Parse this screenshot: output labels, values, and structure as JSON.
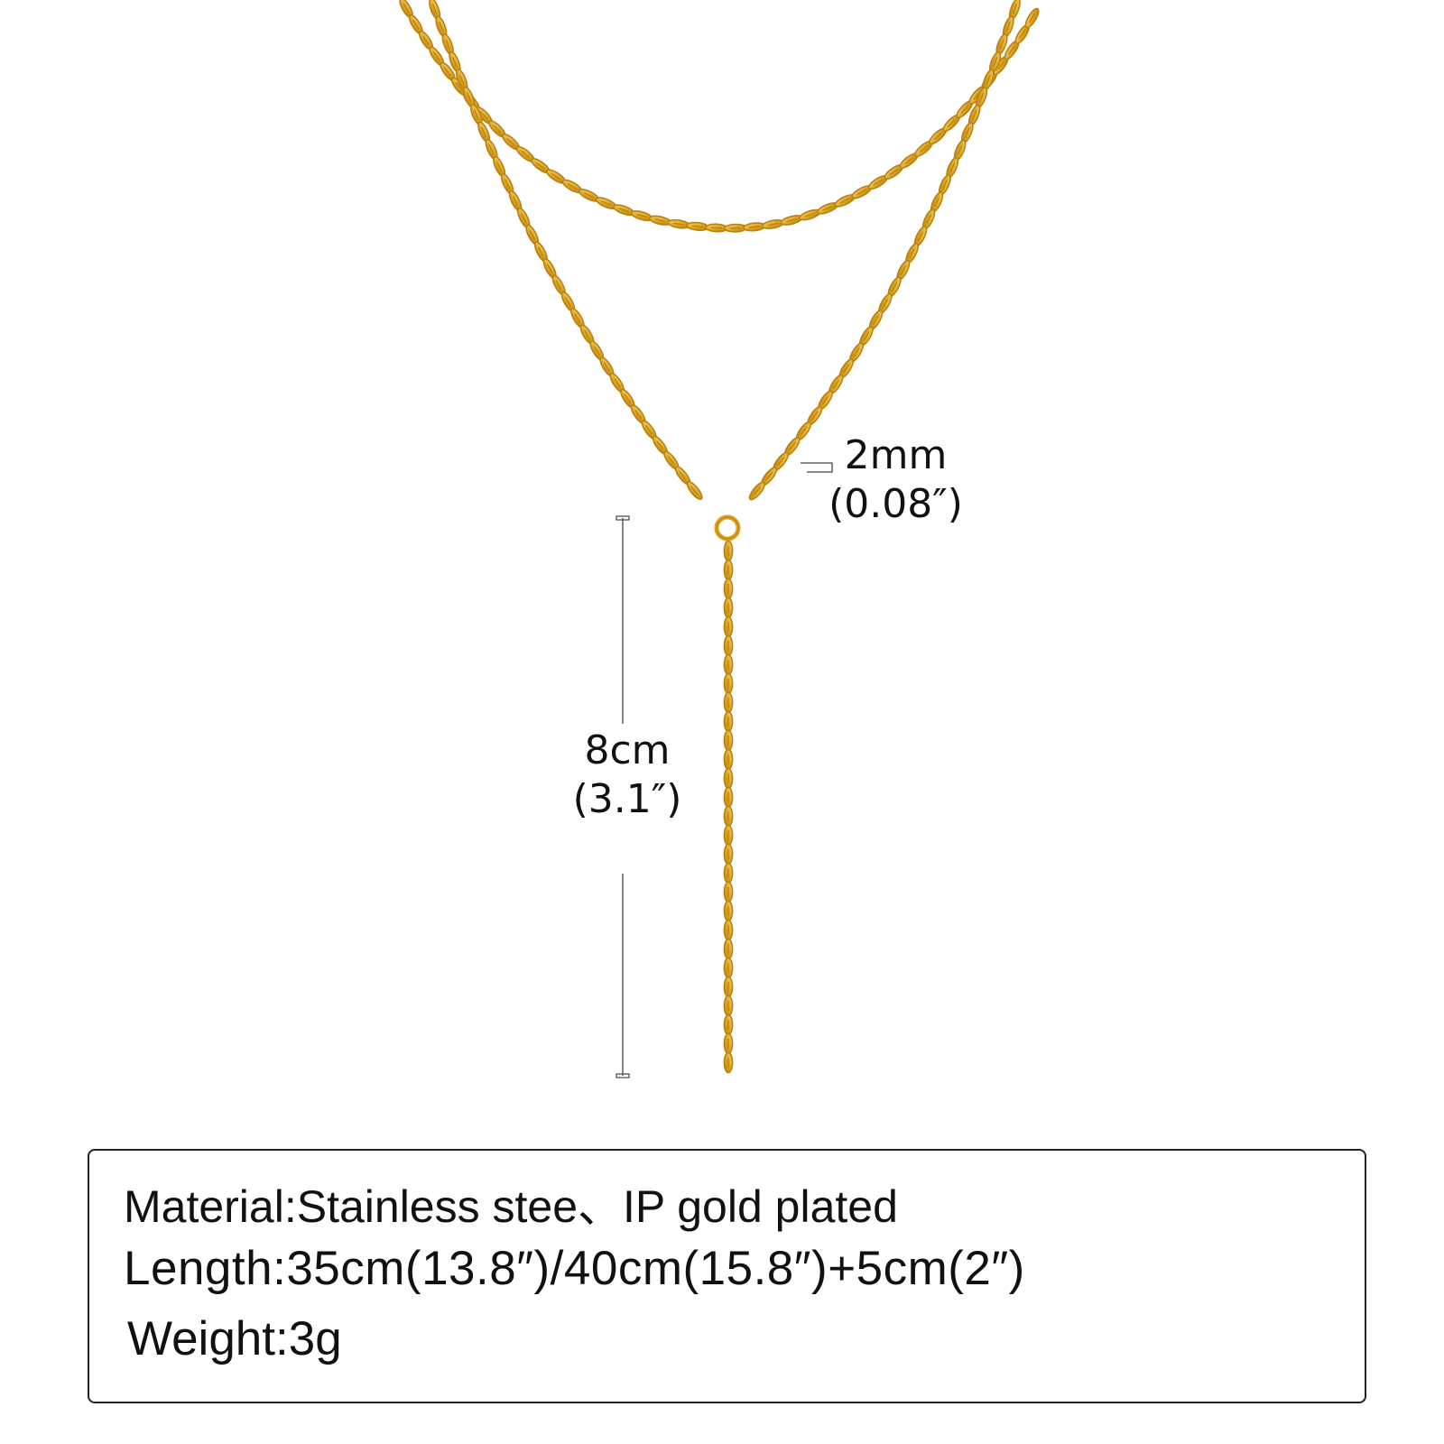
{
  "colors": {
    "gold": "#D9A21F",
    "gold_dark": "#B98212",
    "gold_light": "#F6D36A",
    "line": "#444444",
    "box_border": "#222222"
  },
  "dimensions": {
    "link_width": {
      "metric": "2mm",
      "imperial": "(0.08″)"
    },
    "drop_length": {
      "metric": "8cm",
      "imperial": "(3.1″)"
    }
  },
  "specs": {
    "material": "Material:Stainless stee、IP gold plated",
    "length": "Length:35cm(13.8″)/40cm(15.8″)+5cm(2″)",
    "weight": "Weight:3g"
  }
}
